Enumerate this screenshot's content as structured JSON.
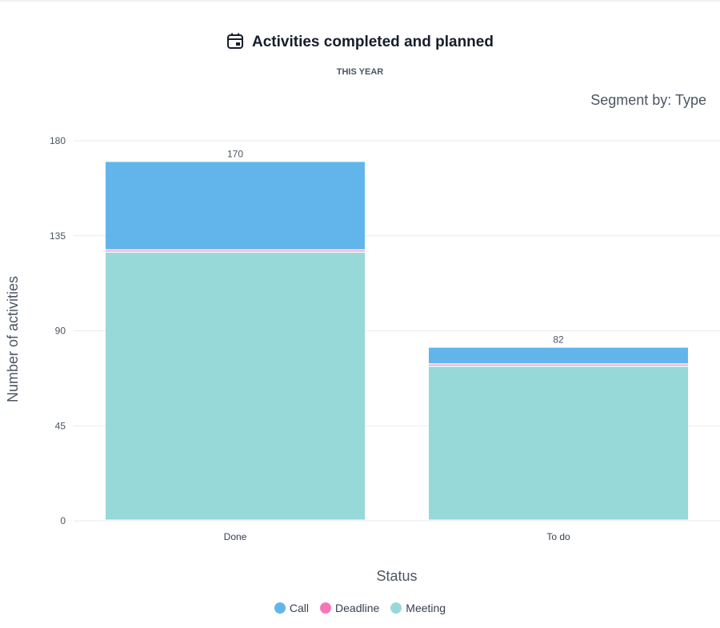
{
  "header": {
    "title": "Activities completed and planned",
    "subtitle": "THIS YEAR",
    "segment_label": "Segment by: Type"
  },
  "chart_data": {
    "type": "bar",
    "stacked": true,
    "title": "Activities completed and planned",
    "xlabel": "Status",
    "ylabel": "Number of activities",
    "categories": [
      "Done",
      "To do"
    ],
    "series": [
      {
        "name": "Meeting",
        "color": "#96d9d8",
        "values": [
          127,
          73
        ]
      },
      {
        "name": "Deadline",
        "color": "#f577b6",
        "values": [
          1,
          1
        ]
      },
      {
        "name": "Call",
        "color": "#62b5ea",
        "values": [
          42,
          8
        ]
      }
    ],
    "totals": [
      "170",
      "82"
    ],
    "yticks": [
      "0",
      "45",
      "90",
      "135",
      "180"
    ],
    "ylim": [
      0,
      180
    ],
    "grid": true,
    "legend_position": "bottom",
    "legend": [
      {
        "label": "Call",
        "color": "#62b5ea"
      },
      {
        "label": "Deadline",
        "color": "#f577b6"
      },
      {
        "label": "Meeting",
        "color": "#96d9d8"
      }
    ]
  }
}
